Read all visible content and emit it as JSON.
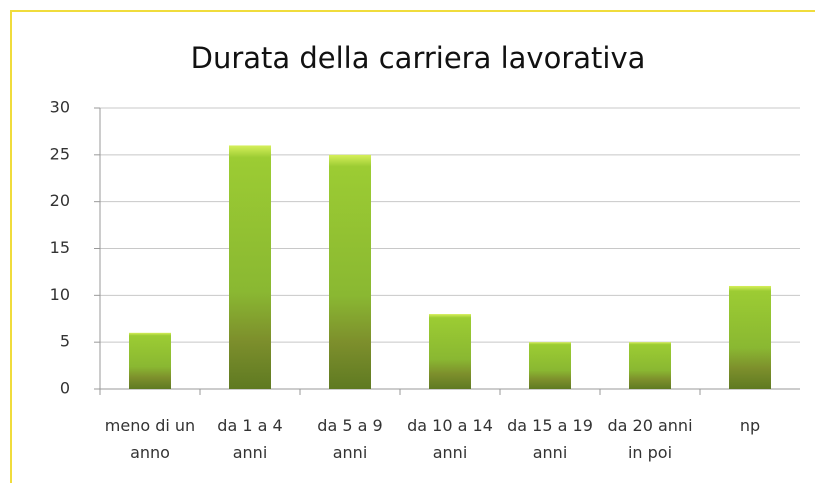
{
  "chart_data": {
    "type": "bar",
    "title": "Durata della carriera lavorativa",
    "categories": [
      "meno di un anno",
      "da 1 a 4 anni",
      "da 5 a 9 anni",
      "da 10 a 14 anni",
      "da 15 a 19 anni",
      "da 20 anni in poi",
      "np"
    ],
    "values": [
      6,
      26,
      25,
      8,
      5,
      5,
      11
    ],
    "color": "#9ccc33",
    "ylim": [
      0,
      30
    ],
    "yticks": [
      0,
      5,
      10,
      15,
      20,
      25,
      30
    ],
    "grid": true
  }
}
